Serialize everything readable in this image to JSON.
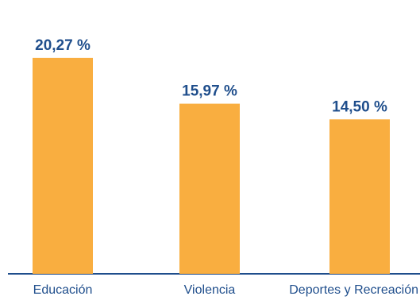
{
  "chart_data": {
    "type": "bar",
    "categories": [
      "Educación",
      "Violencia",
      "Deportes y Recreación"
    ],
    "values": [
      20.27,
      15.97,
      14.5
    ],
    "value_labels": [
      "20,27 %",
      "15,97 %",
      "14,50 %"
    ],
    "ylim": [
      0,
      25.7
    ],
    "grid": false,
    "legend": "none",
    "title": "",
    "xlabel": "",
    "ylabel": ""
  },
  "colors": {
    "bar": "#F9AE40",
    "text": "#1F4E8C",
    "axis": "#1F4E8C"
  }
}
